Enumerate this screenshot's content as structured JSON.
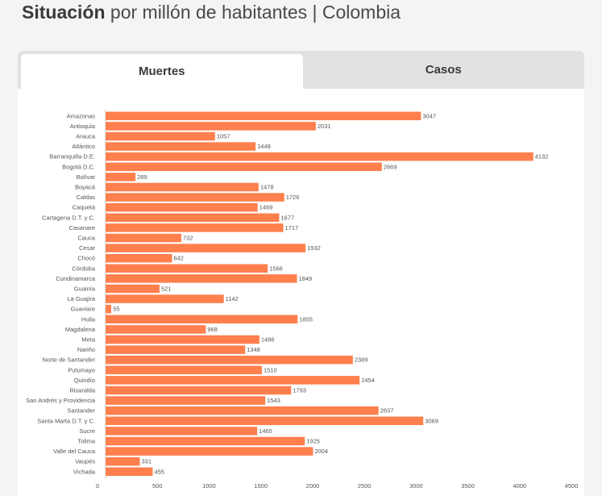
{
  "header": {
    "title_bold": "Situación",
    "title_rest": " por millón de habitantes | Colombia"
  },
  "tabs": [
    {
      "label": "Muertes",
      "active": true
    },
    {
      "label": "Casos",
      "active": false
    }
  ],
  "colors": {
    "bar": "#ff7f4d",
    "axis_text": "#555555"
  },
  "chart_data": {
    "type": "bar",
    "orientation": "horizontal",
    "categories": [
      "Amazonas",
      "Antioquia",
      "Arauca",
      "Atlántico",
      "Barranquilla D.E.",
      "Bogotá D.C.",
      "Bolívar",
      "Boyacá",
      "Caldas",
      "Caquetá",
      "Cartagena D.T. y C.",
      "Casanare",
      "Cauca",
      "Cesar",
      "Chocó",
      "Córdoba",
      "Cundinamarca",
      "Guainía",
      "La Guajira",
      "Guaviare",
      "Huila",
      "Magdalena",
      "Meta",
      "Nariño",
      "Norte de Santander",
      "Putumayo",
      "Quindío",
      "Risaralda",
      "San Andrés y Providencia",
      "Santander",
      "Santa Marta D.T. y C.",
      "Sucre",
      "Tolima",
      "Valle del Cauca",
      "Vaupés",
      "Vichada"
    ],
    "values": [
      3047,
      2031,
      1057,
      1449,
      4132,
      2669,
      289,
      1478,
      1726,
      1469,
      1677,
      1717,
      732,
      1932,
      642,
      1566,
      1849,
      521,
      1142,
      55,
      1855,
      968,
      1486,
      1348,
      2389,
      1510,
      2454,
      1793,
      1543,
      2637,
      3069,
      1465,
      1925,
      2004,
      331,
      455
    ],
    "xlim": [
      0,
      4500
    ],
    "xticks": [
      0,
      500,
      1000,
      1500,
      2000,
      2500,
      3000,
      3500,
      4000,
      4500
    ],
    "xlabel": "",
    "ylabel": "",
    "title": "",
    "grid": false,
    "legend": "none"
  }
}
